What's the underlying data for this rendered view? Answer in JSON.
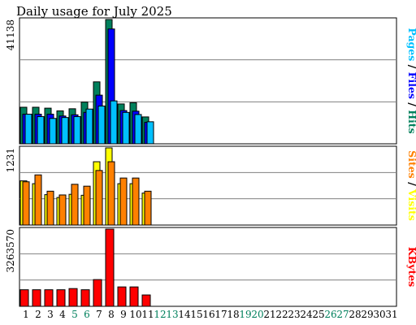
{
  "colors": {
    "hits": "#00805c",
    "files": "#0000ff",
    "pages": "#00c0ff",
    "visits": "#ffff00",
    "sites": "#ff8000",
    "kbytes": "#ff0000",
    "weekend": "#00805c",
    "title": "#0000ff",
    "bg": "#ffffff"
  },
  "chart_data": {
    "type": "bar",
    "title": "Daily usage for July 2025",
    "days": [
      "1",
      "2",
      "3",
      "4",
      "5",
      "6",
      "7",
      "8",
      "9",
      "10",
      "11",
      "12",
      "13",
      "14",
      "15",
      "16",
      "17",
      "18",
      "19",
      "20",
      "21",
      "22",
      "23",
      "24",
      "25",
      "26",
      "27",
      "28",
      "29",
      "30",
      "31"
    ],
    "weekend_days": [
      "5",
      "6",
      "12",
      "13",
      "19",
      "20",
      "26",
      "27"
    ],
    "panels": [
      {
        "id": "hits-files-pages",
        "max_label": "41138",
        "ymax": 41138,
        "legend": [
          "Pages",
          " / ",
          "Files",
          " / ",
          "Hits"
        ],
        "series": [
          {
            "name": "Hits",
            "values": [
              12100,
              12100,
              11800,
              10900,
              11600,
              13800,
              20500,
              41138,
              13200,
              13600,
              8900
            ]
          },
          {
            "name": "Files",
            "values": [
              9800,
              9800,
              9800,
              9200,
              9600,
              10400,
              16100,
              38000,
              11000,
              10800,
              7100
            ]
          },
          {
            "name": "Pages",
            "values": [
              9800,
              9000,
              8400,
              8700,
              9000,
              11500,
              12500,
              14200,
              10400,
              9700,
              7300
            ]
          }
        ]
      },
      {
        "id": "visits-sites",
        "max_label": "1231",
        "ymax": 1231,
        "legend": [
          "Sites",
          " / ",
          "Visits"
        ],
        "series": [
          {
            "name": "Visits",
            "values": [
              705,
              660,
              485,
              440,
              490,
              475,
              1010,
              1231,
              660,
              660,
              510
            ]
          },
          {
            "name": "Sites",
            "values": [
              690,
              800,
              540,
              480,
              650,
              620,
              870,
              1010,
              750,
              750,
              540
            ]
          }
        ]
      },
      {
        "id": "kbytes",
        "max_label": "3263570",
        "ymax": 3263570,
        "legend": [
          "KBytes"
        ],
        "series": [
          {
            "name": "KBytes",
            "values": [
              700000,
              700000,
              700000,
              700000,
              750000,
              700000,
              1130000,
              3263570,
              820000,
              820000,
              480000
            ]
          }
        ]
      }
    ]
  }
}
